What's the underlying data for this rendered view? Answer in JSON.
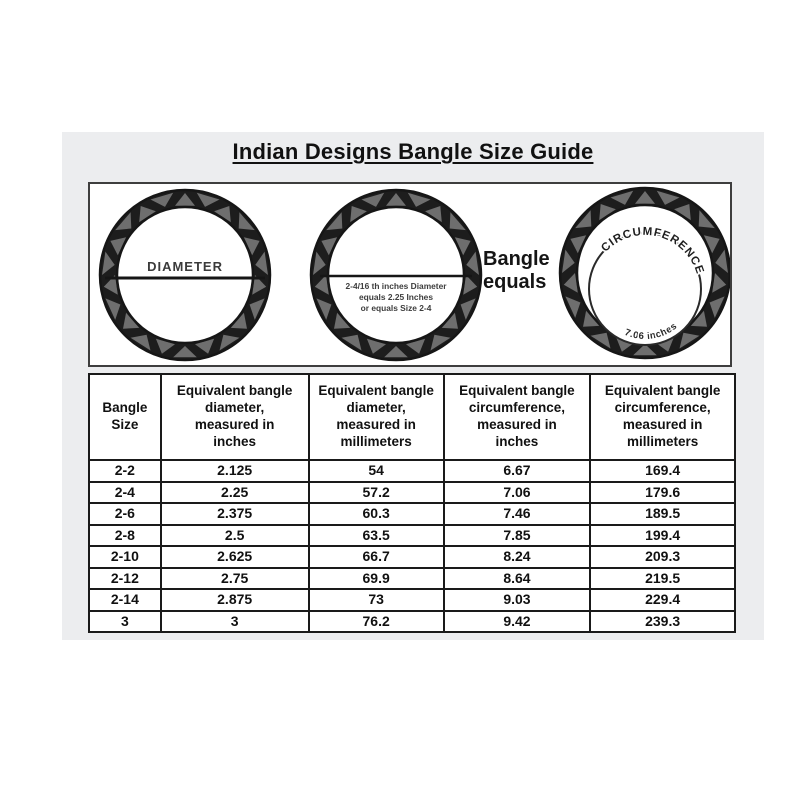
{
  "page_title": "Indian Designs Bangle Size Guide",
  "diagram": {
    "diameter_label": "DIAMETER",
    "middle_caption": [
      "2-4/16 th inches Diameter",
      "equals 2.25 Inches",
      "or equals Size 2-4"
    ],
    "equals_caption": "Bangle\nequals",
    "circumference_arc_label": "CIRCUMFERENCE",
    "circumference_value_label": "7.06 inches"
  },
  "chart_data": {
    "type": "table",
    "title": "Indian Designs Bangle Size Guide",
    "columns": [
      "Bangle\nSize",
      "Equivalent bangle\ndiameter,\nmeasured in\ninches",
      "Equivalent bangle\ndiameter,\nmeasured in\nmillimeters",
      "Equivalent bangle\ncircumference,\nmeasured in\ninches",
      "Equivalent bangle\ncircumference,\nmeasured in\nmillimeters"
    ],
    "rows": [
      [
        "2-2",
        "2.125",
        "54",
        "6.67",
        "169.4"
      ],
      [
        "2-4",
        "2.25",
        "57.2",
        "7.06",
        "179.6"
      ],
      [
        "2-6",
        "2.375",
        "60.3",
        "7.46",
        "189.5"
      ],
      [
        "2-8",
        "2.5",
        "63.5",
        "7.85",
        "199.4"
      ],
      [
        "2-10",
        "2.625",
        "66.7",
        "8.24",
        "209.3"
      ],
      [
        "2-12",
        "2.75",
        "69.9",
        "8.64",
        "219.5"
      ],
      [
        "2-14",
        "2.875",
        "73",
        "9.03",
        "229.4"
      ],
      [
        "3",
        "3",
        "76.2",
        "9.42",
        "239.3"
      ]
    ]
  },
  "colors": {
    "page_bg": "#ffffff",
    "panel_bg": "#ecedef",
    "box_border": "#3e3e3e",
    "table_border": "#1a1a1a",
    "ring_dark": "#1d1d1d",
    "ring_gray": "#6e6e6e",
    "text": "#111111"
  }
}
